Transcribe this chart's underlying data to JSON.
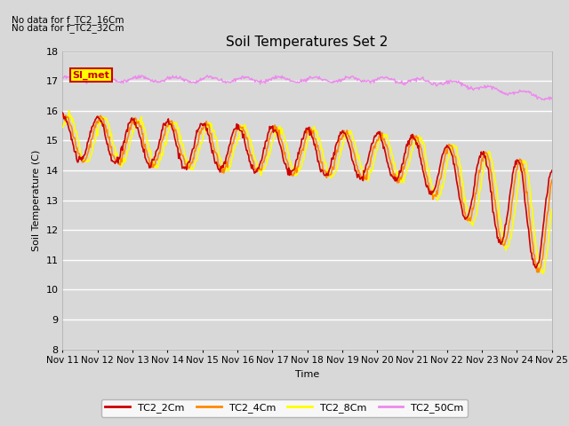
{
  "title": "Soil Temperatures Set 2",
  "xlabel": "Time",
  "ylabel": "Soil Temperature (C)",
  "ylim": [
    8.0,
    18.0
  ],
  "yticks": [
    8.0,
    9.0,
    10.0,
    11.0,
    12.0,
    13.0,
    14.0,
    15.0,
    16.0,
    17.0,
    18.0
  ],
  "xtick_labels": [
    "Nov 11",
    "Nov 12",
    "Nov 13",
    "Nov 14",
    "Nov 15",
    "Nov 16",
    "Nov 17",
    "Nov 18",
    "Nov 19",
    "Nov 20",
    "Nov 21",
    "Nov 22",
    "Nov 23",
    "Nov 24",
    "Nov 25"
  ],
  "background_color": "#d8d8d8",
  "plot_bg_color": "#d8d8d8",
  "grid_color": "#ffffff",
  "annotation_text1": "No data for f_TC2_16Cm",
  "annotation_text2": "No data for f_TC2_32Cm",
  "annotation_box_text": "SI_met",
  "annotation_box_color": "#ffff00",
  "annotation_box_border": "#cc0000",
  "series": [
    {
      "label": "TC2_2Cm",
      "color": "#cc0000",
      "lw": 1.2
    },
    {
      "label": "TC2_4Cm",
      "color": "#ff8800",
      "lw": 1.2
    },
    {
      "label": "TC2_8Cm",
      "color": "#ffff00",
      "lw": 1.2
    },
    {
      "label": "TC2_50Cm",
      "color": "#ee88ee",
      "lw": 1.0
    }
  ]
}
